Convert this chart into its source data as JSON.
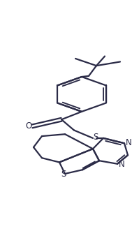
{
  "bg_color": "#ffffff",
  "line_color": "#2b2b47",
  "line_width": 1.6,
  "fig_width": 1.99,
  "fig_height": 3.51,
  "dpi": 100,
  "xlim": [
    0.0,
    1.0
  ],
  "ylim": [
    0.0,
    1.0
  ]
}
